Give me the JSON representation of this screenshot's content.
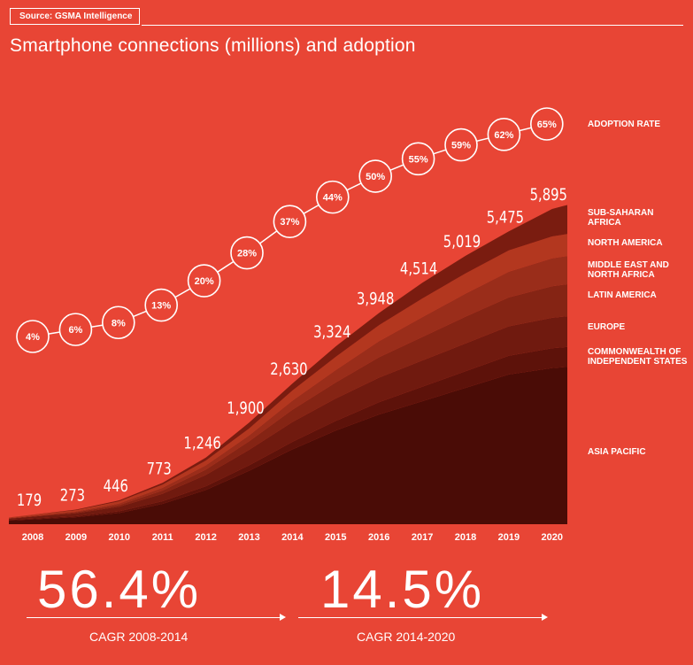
{
  "source": "Source: GSMA Intelligence",
  "title": "Smartphone connections (millions) and adoption",
  "chart_data": {
    "type": "area",
    "title": "Smartphone connections (millions) and adoption",
    "x": [
      "2008",
      "2009",
      "2010",
      "2011",
      "2012",
      "2013",
      "2014",
      "2015",
      "2016",
      "2017",
      "2018",
      "2019",
      "2020"
    ],
    "totals": [
      179,
      273,
      446,
      773,
      1246,
      1900,
      2630,
      3324,
      3948,
      4514,
      5019,
      5475,
      5895
    ],
    "total_labels": [
      "179",
      "273",
      "446",
      "773",
      "1,246",
      "1,900",
      "2,630",
      "3,324",
      "3,948",
      "4,514",
      "5,019",
      "5,475",
      "5,895"
    ],
    "adoption_rate": [
      4,
      6,
      8,
      13,
      20,
      28,
      37,
      44,
      50,
      55,
      59,
      62,
      65
    ],
    "adoption_labels": [
      "4%",
      "6%",
      "8%",
      "13%",
      "20%",
      "28%",
      "37%",
      "44%",
      "50%",
      "55%",
      "59%",
      "62%",
      "65%"
    ],
    "adoption_label": "ADOPTION RATE",
    "series": [
      {
        "name": "ASIA PACIFIC",
        "color": "#4a0c06",
        "values": [
          90,
          130,
          210,
          380,
          640,
          1000,
          1400,
          1750,
          2050,
          2300,
          2550,
          2800,
          2920
        ]
      },
      {
        "name": "COMMONWEALTH OF INDEPENDENT STATES",
        "color": "#5d120a",
        "values": [
          15,
          20,
          32,
          50,
          70,
          100,
          140,
          180,
          230,
          270,
          310,
          350,
          370
        ]
      },
      {
        "name": "EUROPE",
        "color": "#701a0f",
        "values": [
          35,
          55,
          85,
          140,
          210,
          290,
          370,
          420,
          460,
          490,
          520,
          550,
          570
        ]
      },
      {
        "name": "LATIN AMERICA",
        "color": "#852414",
        "values": [
          10,
          18,
          32,
          60,
          100,
          160,
          230,
          300,
          380,
          440,
          500,
          540,
          590
        ]
      },
      {
        "name": "MIDDLE EAST AND NORTH AFRICA",
        "color": "#9a2d1a",
        "values": [
          10,
          15,
          30,
          50,
          80,
          110,
          170,
          230,
          300,
          370,
          430,
          480,
          520
        ]
      },
      {
        "name": "NORTH AMERICA",
        "color": "#b3371f",
        "values": [
          15,
          25,
          40,
          60,
          90,
          130,
          190,
          250,
          300,
          350,
          380,
          400,
          410
        ]
      },
      {
        "name": "SUB-SAHARAN AFRICA",
        "color": "#7a1c10",
        "values": [
          4,
          10,
          17,
          33,
          56,
          110,
          130,
          194,
          228,
          294,
          329,
          355,
          515
        ]
      }
    ],
    "legend_order": [
      "SUB-SAHARAN AFRICA",
      "NORTH AMERICA",
      "MIDDLE EAST AND NORTH AFRICA",
      "LATIN AMERICA",
      "EUROPE",
      "COMMONWEALTH OF INDEPENDENT STATES",
      "ASIA PACIFIC"
    ],
    "ylim": [
      0,
      6500
    ]
  },
  "cagr": [
    {
      "value": "56.4%",
      "label": "CAGR 2008-2014"
    },
    {
      "value": "14.5%",
      "label": "CAGR 2014-2020"
    }
  ]
}
